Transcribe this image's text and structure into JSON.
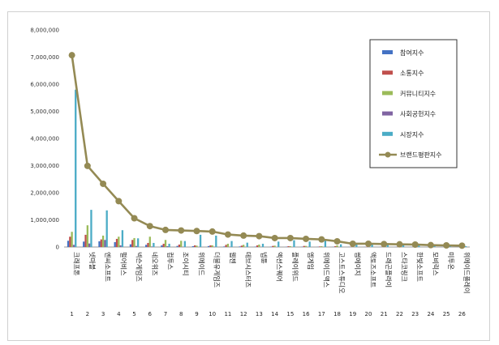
{
  "chart_data": {
    "type": "bar",
    "ylim": [
      0,
      8000000
    ],
    "yticks": [
      0,
      1000000,
      2000000,
      3000000,
      4000000,
      5000000,
      6000000,
      7000000,
      8000000
    ],
    "ytick_labels": [
      "0",
      "1,000,000",
      "2,000,000",
      "3,000,000",
      "4,000,000",
      "5,000,000",
      "6,000,000",
      "7,000,000",
      "8,000,000"
    ],
    "grid": false,
    "legend_position": "top-right",
    "ranks": [
      "1",
      "2",
      "3",
      "4",
      "5",
      "6",
      "7",
      "8",
      "9",
      "10",
      "11",
      "12",
      "13",
      "14",
      "15",
      "16",
      "17",
      "18",
      "19",
      "20",
      "21",
      "22",
      "23",
      "24",
      "25",
      "26"
    ],
    "categories": [
      "크래프톤",
      "넷마블",
      "엔씨소프트",
      "펄어비스",
      "넥슨게임즈",
      "네오위즈",
      "컴투스",
      "조이시티",
      "위메이드",
      "더블유게임즈",
      "웹젠",
      "데브시스터즈",
      "넵튠",
      "액션스퀘어",
      "플레이위드",
      "엠게임",
      "위메이드맥스",
      "고스트스튜디오",
      "썸에이지",
      "액토즈소프트",
      "드래곤플라이",
      "스타코링크",
      "한빛소프트",
      "모비릭스",
      "미투온",
      "위메이드플레이"
    ],
    "series": [
      {
        "name": "참여지수",
        "color": "#4472C4",
        "values": [
          230000,
          200000,
          210000,
          180000,
          100000,
          80000,
          60000,
          40000,
          30000,
          35000,
          20000,
          20000,
          15000,
          12000,
          10000,
          10000,
          8000,
          8000,
          5000,
          5000,
          4000,
          4000,
          3000,
          3000,
          3000,
          2000
        ]
      },
      {
        "name": "소통지수",
        "color": "#C0504D",
        "values": [
          380000,
          450000,
          280000,
          300000,
          260000,
          150000,
          120000,
          90000,
          60000,
          60000,
          80000,
          50000,
          60000,
          40000,
          30000,
          40000,
          20000,
          30000,
          10000,
          10000,
          8000,
          8000,
          6000,
          5000,
          5000,
          4000
        ]
      },
      {
        "name": "커뮤니티지수",
        "color": "#9BBB59",
        "values": [
          560000,
          800000,
          420000,
          380000,
          330000,
          380000,
          260000,
          230000,
          50000,
          60000,
          120000,
          80000,
          90000,
          50000,
          30000,
          40000,
          30000,
          60000,
          15000,
          10000,
          10000,
          10000,
          8000,
          6000,
          5000,
          4000
        ]
      },
      {
        "name": "사회공헌지수",
        "color": "#8064A2",
        "values": [
          80000,
          130000,
          260000,
          60000,
          40000,
          20000,
          30000,
          10000,
          5000,
          10000,
          10000,
          5000,
          5000,
          0,
          0,
          5000,
          0,
          0,
          0,
          0,
          0,
          0,
          0,
          0,
          0,
          0
        ]
      },
      {
        "name": "시장지수",
        "color": "#4BACC6",
        "values": [
          5800000,
          1370000,
          1350000,
          620000,
          320000,
          150000,
          120000,
          220000,
          450000,
          420000,
          220000,
          160000,
          120000,
          200000,
          250000,
          200000,
          280000,
          100000,
          90000,
          90000,
          80000,
          70000,
          60000,
          40000,
          30000,
          30000
        ]
      },
      {
        "name": "브랜드평판지수",
        "color": "#948A54",
        "values": [
          7070000,
          2990000,
          2330000,
          1690000,
          1060000,
          770000,
          630000,
          610000,
          590000,
          570000,
          460000,
          420000,
          400000,
          330000,
          330000,
          300000,
          280000,
          210000,
          120000,
          120000,
          110000,
          100000,
          90000,
          70000,
          60000,
          50000
        ]
      }
    ]
  }
}
